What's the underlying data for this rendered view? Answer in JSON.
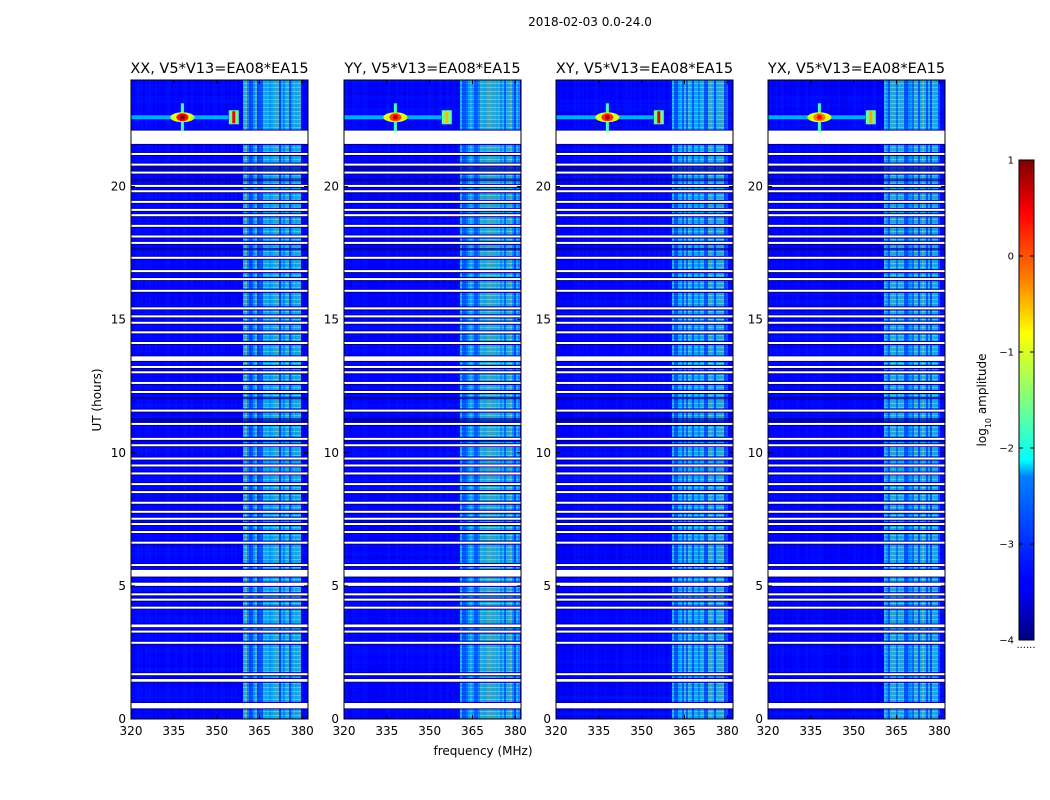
{
  "figure": {
    "title": "2018-02-03 0.0-24.0",
    "xlabel": "frequency (MHz)",
    "ylabel": "UT (hours)"
  },
  "chart_data": {
    "type": "heatmap",
    "title": "2018-02-03 0.0-24.0",
    "xlabel": "frequency (MHz)",
    "ylabel": "UT (hours)",
    "xlim": [
      320,
      382
    ],
    "ylim": [
      0,
      24
    ],
    "xticks": [
      320,
      335,
      350,
      365,
      380
    ],
    "yticks": [
      0,
      5,
      10,
      15,
      20
    ],
    "xtick_labels": [
      "320",
      "335",
      "350",
      "365",
      "380"
    ],
    "ytick_labels": [
      "0",
      "5",
      "10",
      "15",
      "20"
    ],
    "colorscale": "jet",
    "colorbar": {
      "label": "log10 amplitude",
      "label_main": "log",
      "label_sub": "10",
      "label_rest": " amplitude",
      "range": [
        -4,
        1
      ],
      "ticks": [
        1,
        0,
        -1,
        -2,
        -3,
        -4
      ],
      "tick_labels": [
        "1",
        "0",
        "−1",
        "−2",
        "−3",
        "−4"
      ],
      "footer": "......"
    },
    "panels": [
      {
        "title": "XX, V5*V13=EA08*EA15",
        "rfi_band_mhz": [
          359,
          379
        ],
        "bursts": [
          {
            "freq_mhz": 338,
            "ut_hours": 22.6,
            "kind": "cross",
            "peak": 1.0
          },
          {
            "freq_mhz": 356,
            "ut_hours": 22.6,
            "kind": "bar",
            "peak": 0.5
          }
        ]
      },
      {
        "title": "YY, V5*V13=EA08*EA15",
        "rfi_band_mhz": [
          360,
          381
        ],
        "bursts": [
          {
            "freq_mhz": 338,
            "ut_hours": 22.6,
            "kind": "cross",
            "peak": 0.7
          },
          {
            "freq_mhz": 356,
            "ut_hours": 22.6,
            "kind": "bar",
            "peak": -0.5
          }
        ]
      },
      {
        "title": "XY, V5*V13=EA08*EA15",
        "rfi_band_mhz": [
          360,
          380
        ],
        "bursts": [
          {
            "freq_mhz": 338,
            "ut_hours": 22.6,
            "kind": "cross",
            "peak": 0.8
          },
          {
            "freq_mhz": 356,
            "ut_hours": 22.6,
            "kind": "bar",
            "peak": 0.6
          }
        ]
      },
      {
        "title": "YX, V5*V13=EA08*EA15",
        "rfi_band_mhz": [
          360,
          380
        ],
        "bursts": [
          {
            "freq_mhz": 338,
            "ut_hours": 22.6,
            "kind": "cross",
            "peak": 0.4
          },
          {
            "freq_mhz": 356,
            "ut_hours": 22.6,
            "kind": "bar",
            "peak": -0.4
          }
        ]
      }
    ],
    "flagged_ut_hours": [
      [
        0.4,
        0.6
      ],
      [
        1.4,
        1.5
      ],
      [
        1.65,
        1.72
      ],
      [
        2.85,
        2.9
      ],
      [
        3.25,
        3.32
      ],
      [
        3.45,
        3.55
      ],
      [
        4.15,
        4.22
      ],
      [
        4.45,
        4.52
      ],
      [
        4.65,
        4.72
      ],
      [
        5.0,
        5.12
      ],
      [
        5.35,
        5.6
      ],
      [
        5.75,
        5.82
      ],
      [
        6.6,
        6.66
      ],
      [
        7.0,
        7.06
      ],
      [
        7.3,
        7.36
      ],
      [
        7.5,
        7.56
      ],
      [
        7.75,
        7.82
      ],
      [
        8.1,
        8.16
      ],
      [
        8.5,
        8.56
      ],
      [
        8.8,
        8.86
      ],
      [
        9.2,
        9.26
      ],
      [
        9.5,
        9.56
      ],
      [
        9.75,
        9.82
      ],
      [
        10.25,
        10.32
      ],
      [
        10.5,
        10.56
      ],
      [
        11.05,
        11.12
      ],
      [
        11.55,
        11.62
      ],
      [
        12.25,
        12.32
      ],
      [
        12.6,
        12.66
      ],
      [
        13.0,
        13.06
      ],
      [
        13.2,
        13.26
      ],
      [
        13.45,
        13.62
      ],
      [
        14.1,
        14.16
      ],
      [
        14.5,
        14.56
      ],
      [
        14.85,
        14.92
      ],
      [
        15.1,
        15.16
      ],
      [
        15.4,
        15.46
      ],
      [
        16.05,
        16.12
      ],
      [
        16.5,
        16.56
      ],
      [
        16.8,
        16.86
      ],
      [
        17.3,
        17.36
      ],
      [
        17.85,
        17.92
      ],
      [
        18.1,
        18.16
      ],
      [
        18.5,
        18.56
      ],
      [
        18.9,
        18.96
      ],
      [
        19.1,
        19.16
      ],
      [
        19.4,
        19.46
      ],
      [
        19.8,
        19.86
      ],
      [
        20.0,
        20.06
      ],
      [
        20.5,
        20.56
      ],
      [
        20.8,
        20.86
      ],
      [
        21.2,
        21.26
      ],
      [
        21.6,
        22.1
      ]
    ],
    "dark_ut_hours": [
      [
        10.4,
        10.5
      ],
      [
        11.15,
        11.3
      ],
      [
        12.0,
        12.1
      ],
      [
        17.6,
        17.7
      ],
      [
        20.2,
        20.3
      ],
      [
        20.6,
        20.75
      ]
    ]
  }
}
